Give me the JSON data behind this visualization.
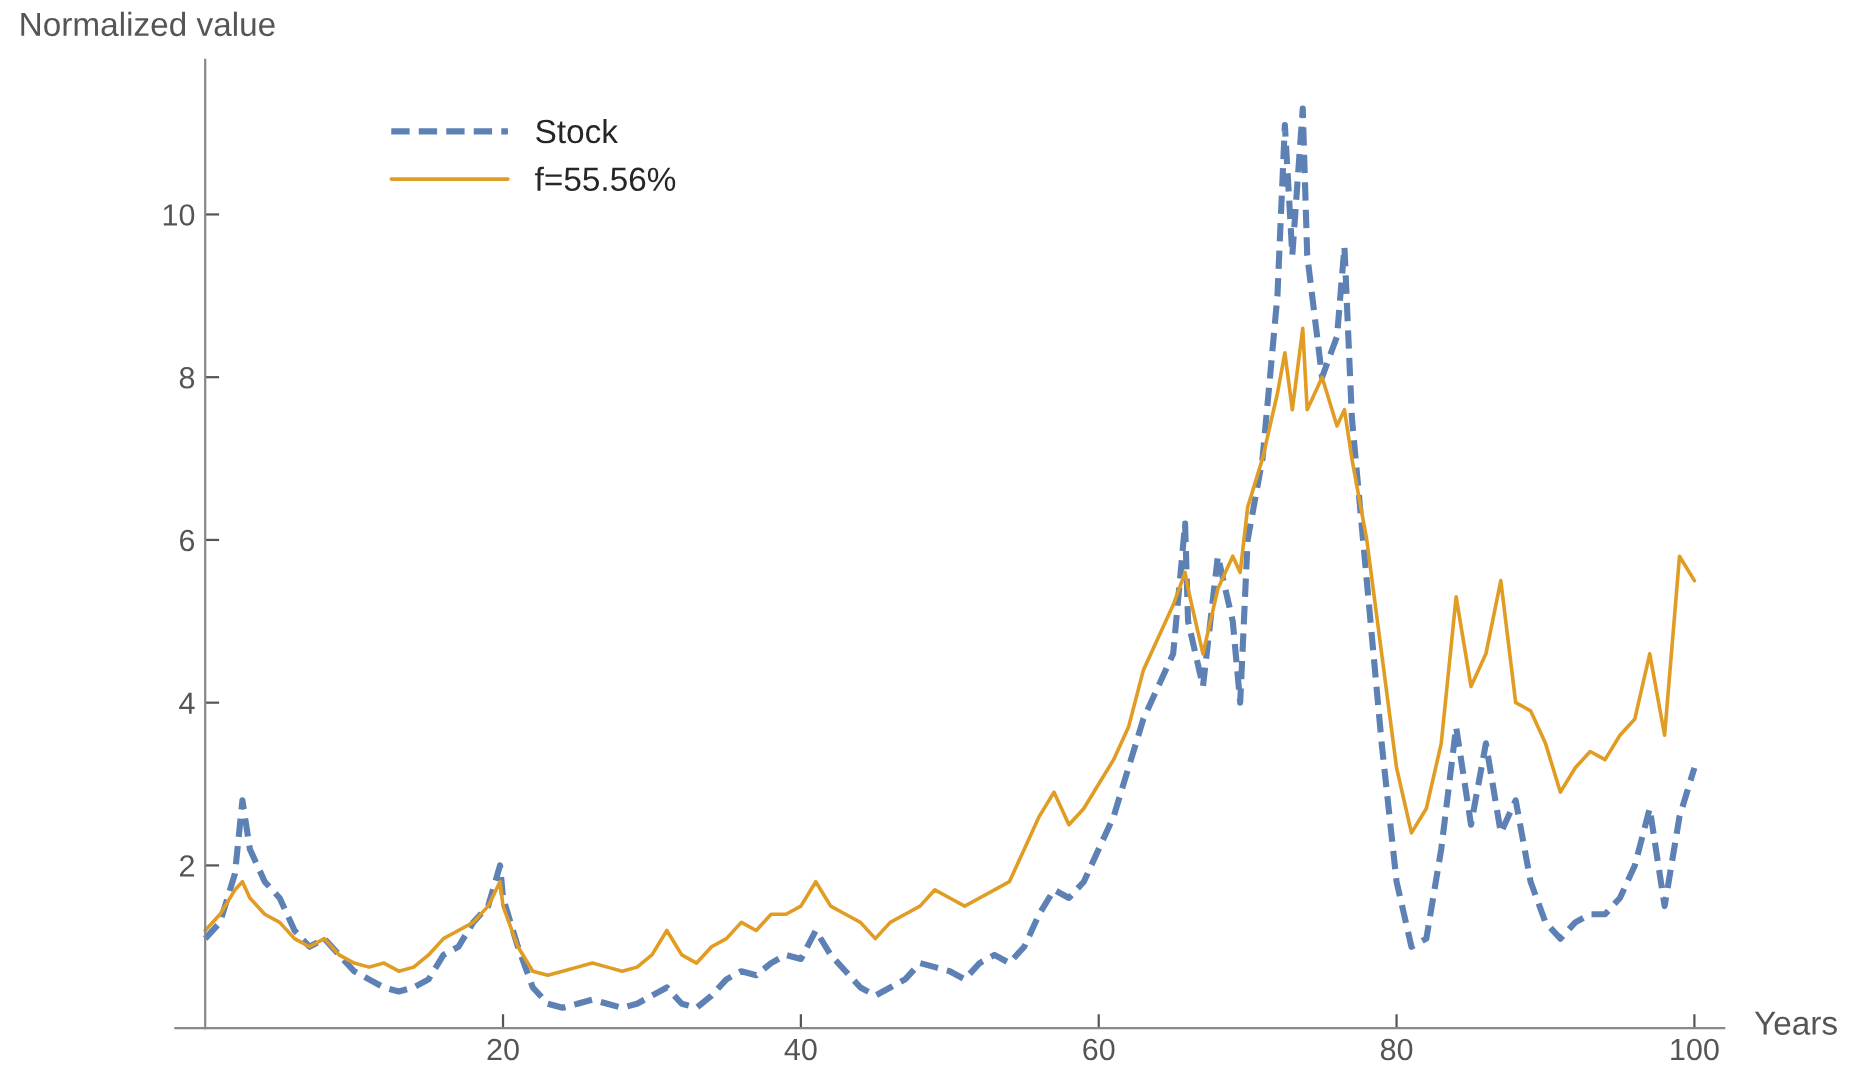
{
  "chart_data": {
    "type": "line",
    "xlabel": "Years",
    "ylabel": "Normalized value",
    "x": [
      0,
      1,
      2,
      2.5,
      3,
      4,
      5,
      6,
      7,
      8,
      9,
      10,
      11,
      12,
      13,
      14,
      15,
      16,
      17,
      18,
      19,
      19.8,
      20,
      21,
      22,
      23,
      24,
      25,
      26,
      27,
      28,
      29,
      30,
      31,
      32,
      33,
      34,
      35,
      36,
      37,
      38,
      39,
      40,
      41,
      42,
      43,
      44,
      45,
      46,
      47,
      48,
      49,
      50,
      51,
      52,
      53,
      54,
      55,
      56,
      57,
      58,
      59,
      60,
      61,
      62,
      63,
      64,
      65,
      65.8,
      66,
      67,
      68,
      69,
      69.5,
      70,
      71,
      72,
      72.5,
      73,
      73.7,
      74,
      75,
      76,
      76.5,
      77,
      78,
      79,
      80,
      81,
      82,
      83,
      84,
      85,
      86,
      87,
      88,
      89,
      90,
      91,
      92,
      93,
      94,
      95,
      96,
      97,
      98,
      99,
      100
    ],
    "series": [
      {
        "name": "Stock",
        "color": "#5e81b5",
        "line_style": "dashed",
        "values": [
          1.1,
          1.3,
          1.9,
          2.8,
          2.2,
          1.8,
          1.6,
          1.2,
          1.0,
          1.1,
          0.9,
          0.7,
          0.6,
          0.5,
          0.45,
          0.5,
          0.6,
          0.9,
          1.0,
          1.3,
          1.5,
          2.0,
          1.6,
          1.0,
          0.5,
          0.3,
          0.25,
          0.3,
          0.35,
          0.3,
          0.25,
          0.3,
          0.4,
          0.5,
          0.3,
          0.25,
          0.4,
          0.6,
          0.7,
          0.65,
          0.8,
          0.9,
          0.85,
          1.2,
          0.9,
          0.7,
          0.5,
          0.4,
          0.5,
          0.6,
          0.8,
          0.75,
          0.7,
          0.6,
          0.8,
          0.9,
          0.8,
          1.0,
          1.4,
          1.7,
          1.6,
          1.8,
          2.2,
          2.6,
          3.2,
          3.8,
          4.2,
          4.6,
          6.2,
          5.0,
          4.2,
          5.8,
          5.0,
          4.0,
          6.0,
          7.0,
          9.0,
          11.1,
          9.5,
          11.3,
          9.5,
          8.0,
          8.5,
          9.6,
          7.5,
          5.5,
          3.5,
          1.8,
          1.0,
          1.1,
          2.2,
          3.7,
          2.5,
          3.5,
          2.4,
          2.8,
          1.8,
          1.3,
          1.1,
          1.3,
          1.4,
          1.4,
          1.6,
          2.0,
          2.7,
          1.5,
          2.6,
          3.2
        ]
      },
      {
        "name": "f=55.56%",
        "color": "#e19c24",
        "line_style": "solid",
        "values": [
          1.2,
          1.4,
          1.7,
          1.8,
          1.6,
          1.4,
          1.3,
          1.1,
          1.0,
          1.1,
          0.9,
          0.8,
          0.75,
          0.8,
          0.7,
          0.75,
          0.9,
          1.1,
          1.2,
          1.3,
          1.5,
          1.8,
          1.5,
          1.0,
          0.7,
          0.65,
          0.7,
          0.75,
          0.8,
          0.75,
          0.7,
          0.75,
          0.9,
          1.2,
          0.9,
          0.8,
          1.0,
          1.1,
          1.3,
          1.2,
          1.4,
          1.4,
          1.5,
          1.8,
          1.5,
          1.4,
          1.3,
          1.1,
          1.3,
          1.4,
          1.5,
          1.7,
          1.6,
          1.5,
          1.6,
          1.7,
          1.8,
          2.2,
          2.6,
          2.9,
          2.5,
          2.7,
          3.0,
          3.3,
          3.7,
          4.4,
          4.8,
          5.2,
          5.6,
          5.4,
          4.6,
          5.4,
          5.8,
          5.6,
          6.4,
          7.0,
          7.8,
          8.3,
          7.6,
          8.6,
          7.6,
          8.0,
          7.4,
          7.6,
          7.0,
          6.0,
          4.6,
          3.2,
          2.4,
          2.7,
          3.5,
          5.3,
          4.2,
          4.6,
          5.5,
          4.0,
          3.9,
          3.5,
          2.9,
          3.2,
          3.4,
          3.3,
          3.6,
          3.8,
          4.6,
          3.6,
          5.8,
          5.5
        ]
      }
    ],
    "xlim": [
      -2,
      102
    ],
    "xticks": [
      20,
      40,
      60,
      80,
      100
    ],
    "ylim": [
      0,
      11.9
    ],
    "yticks": [
      2,
      4,
      6,
      8,
      10
    ],
    "grid": false,
    "legend": "top left"
  }
}
